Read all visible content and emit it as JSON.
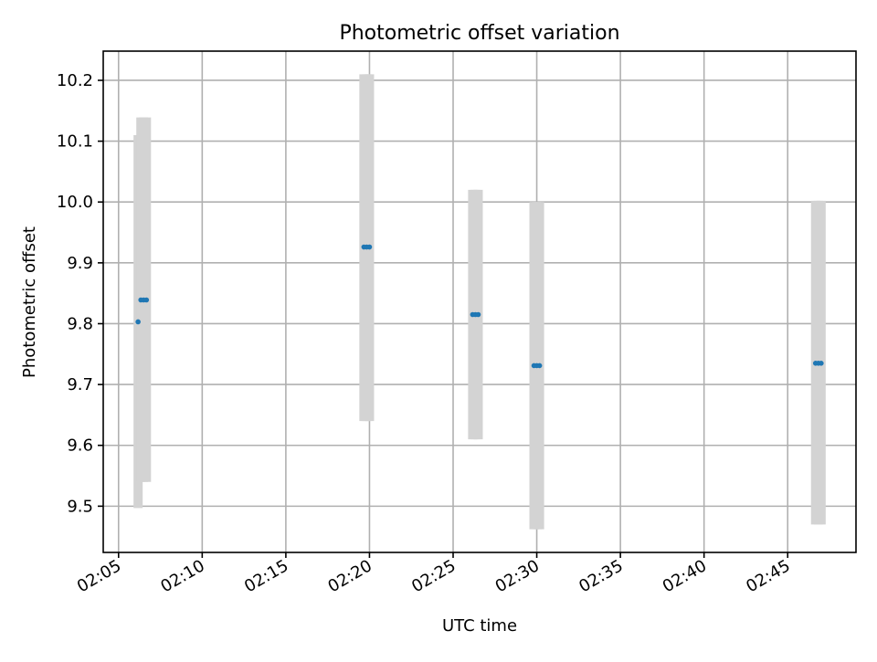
{
  "chart_data": {
    "type": "scatter",
    "title": "Photometric offset variation",
    "xlabel": "UTC time",
    "ylabel": "Photometric offset",
    "x_ticks": [
      "02:05",
      "02:10",
      "02:15",
      "02:20",
      "02:25",
      "02:30",
      "02:35",
      "02:40",
      "02:45"
    ],
    "y_ticks": [
      "9.5",
      "9.6",
      "9.7",
      "9.8",
      "9.9",
      "10.0",
      "10.1",
      "10.2"
    ],
    "xlim": [
      "02:04:05",
      "02:49:05"
    ],
    "ylim": [
      9.424,
      10.248
    ],
    "grid": true,
    "series": [
      {
        "marker_color": "#1f77b4",
        "errorbar_color": "#d3d3d3",
        "points": [
          {
            "x": "02:06:10",
            "y": 9.803,
            "ylow": 9.497,
            "yhigh": 10.11
          },
          {
            "x": "02:06:20",
            "y": 9.839,
            "ylow": 9.54,
            "yhigh": 10.139
          },
          {
            "x": "02:06:30",
            "y": 9.839,
            "ylow": 9.54,
            "yhigh": 10.139
          },
          {
            "x": "02:06:40",
            "y": 9.839,
            "ylow": 9.54,
            "yhigh": 10.139
          },
          {
            "x": "02:19:40",
            "y": 9.926,
            "ylow": 9.64,
            "yhigh": 10.21
          },
          {
            "x": "02:19:50",
            "y": 9.926,
            "ylow": 9.64,
            "yhigh": 10.21
          },
          {
            "x": "02:20:00",
            "y": 9.926,
            "ylow": 9.64,
            "yhigh": 10.21
          },
          {
            "x": "02:26:10",
            "y": 9.815,
            "ylow": 9.61,
            "yhigh": 10.02
          },
          {
            "x": "02:26:20",
            "y": 9.815,
            "ylow": 9.61,
            "yhigh": 10.02
          },
          {
            "x": "02:26:30",
            "y": 9.815,
            "ylow": 9.61,
            "yhigh": 10.02
          },
          {
            "x": "02:29:50",
            "y": 9.731,
            "ylow": 9.462,
            "yhigh": 10.0
          },
          {
            "x": "02:30:00",
            "y": 9.731,
            "ylow": 9.462,
            "yhigh": 10.0
          },
          {
            "x": "02:30:10",
            "y": 9.731,
            "ylow": 9.462,
            "yhigh": 10.0
          },
          {
            "x": "02:46:40",
            "y": 9.735,
            "ylow": 9.47,
            "yhigh": 10.002
          },
          {
            "x": "02:46:50",
            "y": 9.735,
            "ylow": 9.47,
            "yhigh": 10.002
          },
          {
            "x": "02:47:00",
            "y": 9.735,
            "ylow": 9.47,
            "yhigh": 10.002
          }
        ]
      }
    ]
  }
}
